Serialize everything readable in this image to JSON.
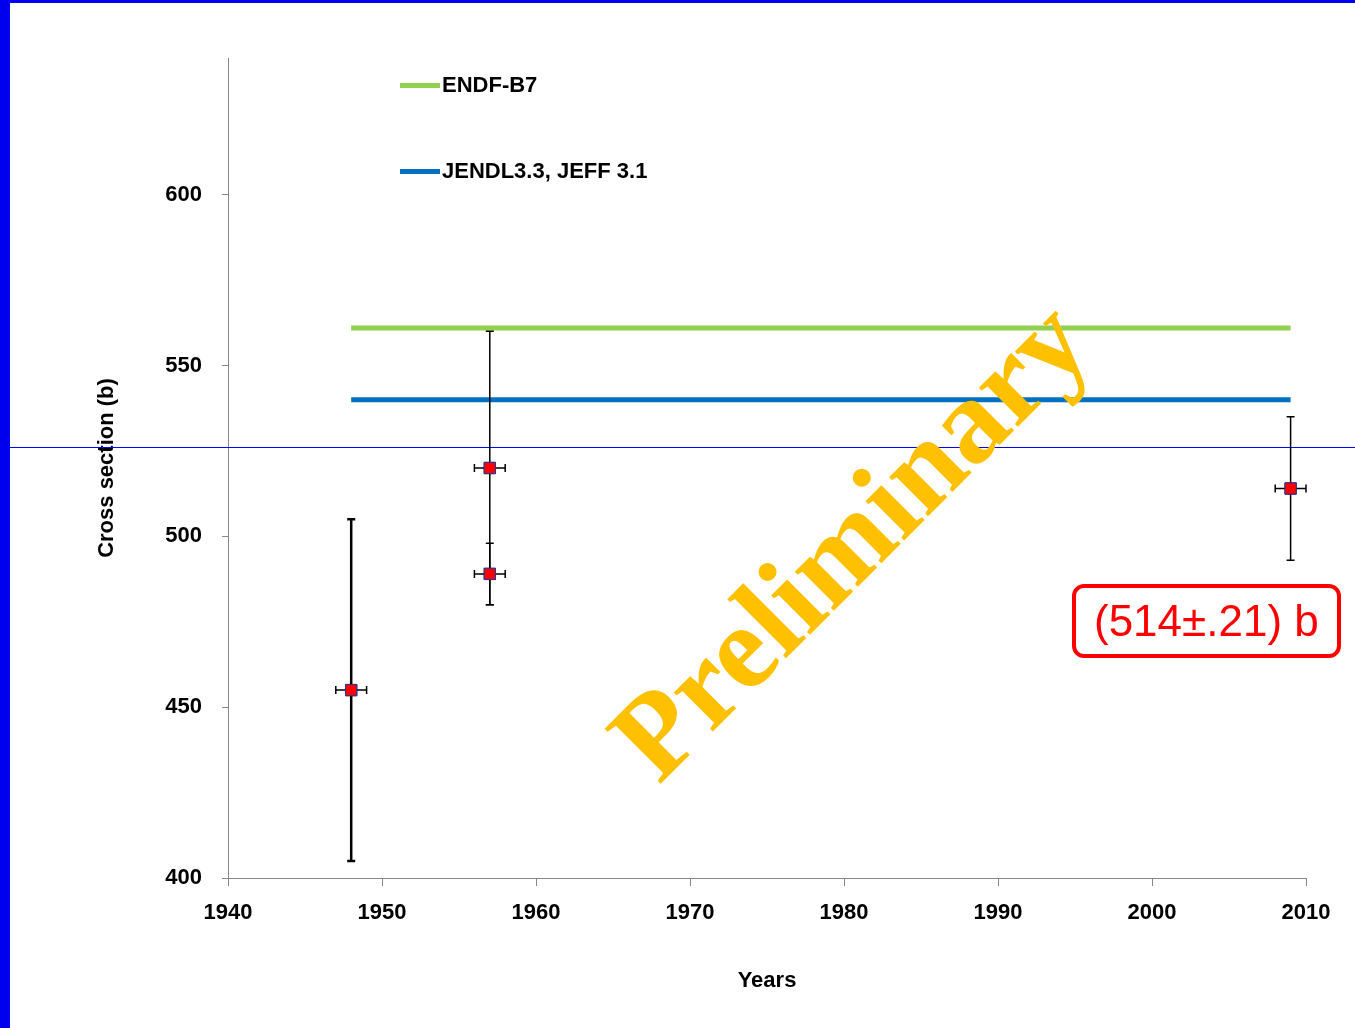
{
  "chart_data": {
    "type": "scatter",
    "xlabel": "Years",
    "ylabel": "Cross section (b)",
    "xlim": [
      1940,
      2010
    ],
    "xticks": [
      1940,
      1950,
      1960,
      1970,
      1980,
      1990,
      2000,
      2010
    ],
    "ylim": [
      400,
      640
    ],
    "yticks": [
      400,
      450,
      500,
      550,
      600
    ],
    "grid": false,
    "legend": "top left",
    "series": [
      {
        "type": "line",
        "marker": "none",
        "name": "ENDF-B7",
        "color": "#92d050",
        "x": [
          1948,
          2009
        ],
        "values": [
          561,
          561
        ]
      },
      {
        "type": "line",
        "marker": "none",
        "name": "JENDL3.3, JEFF 3.1",
        "color": "#0070c0",
        "x": [
          1948,
          2009
        ],
        "values": [
          540,
          540
        ]
      },
      {
        "marker": "square",
        "color": "#ff0000",
        "x": [
          1948,
          1957,
          1957,
          2009
        ],
        "values": [
          455,
          520,
          489,
          514
        ],
        "errors": [
          50,
          40,
          9,
          21
        ],
        "xerrors": [
          1,
          1,
          1,
          1
        ]
      }
    ],
    "ref_lines": [
      {
        "axis": "y",
        "value": 526,
        "color": "#0000ff"
      }
    ],
    "annotations": [
      "Preliminary",
      "(514±.21) b"
    ]
  }
}
